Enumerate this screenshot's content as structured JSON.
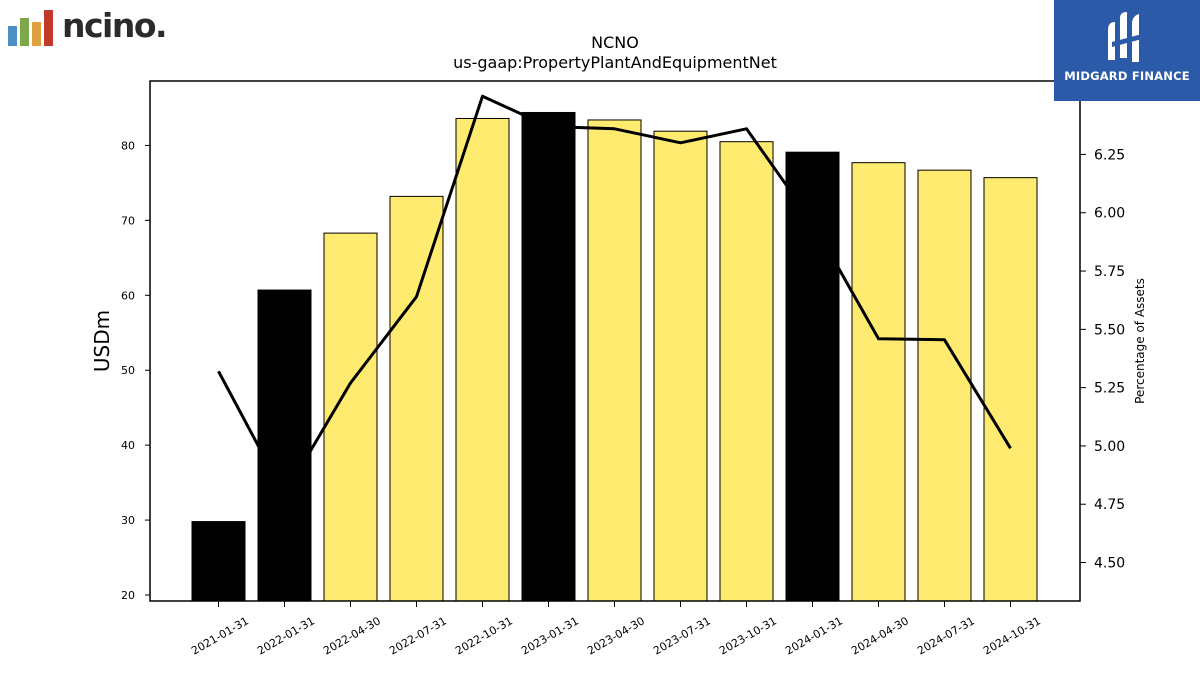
{
  "logos": {
    "left_text": "ncino.",
    "left_bar_colors": [
      "#4a90c2",
      "#7fa84a",
      "#e0a040",
      "#c0392b"
    ],
    "right_text": "MIDGARD FINANCE",
    "right_bg": "#2a5aa8"
  },
  "colors": {
    "bar_yellow": "#ffeb70",
    "bar_black": "#000000",
    "line": "#000000"
  },
  "chart_data": {
    "type": "bar",
    "title": "NCNO",
    "subtitle": "us-gaap:PropertyPlantAndEquipmentNet",
    "ylabel": "USDm",
    "y2label": "Percentage of Assets",
    "ylim": [
      19.2,
      88.6
    ],
    "y2lim": [
      4.335,
      6.565
    ],
    "yticks": [
      20,
      30,
      40,
      50,
      60,
      70,
      80
    ],
    "y2ticks": [
      "4.50",
      "4.75",
      "5.00",
      "5.25",
      "5.50",
      "5.75",
      "6.00",
      "6.25"
    ],
    "categories": [
      "2021-01-31",
      "2022-01-31",
      "2022-04-30",
      "2022-07-31",
      "2022-10-31",
      "2023-01-31",
      "2023-04-30",
      "2023-07-31",
      "2023-10-31",
      "2024-01-31",
      "2024-04-30",
      "2024-07-31",
      "2024-10-31"
    ],
    "series": [
      {
        "type": "bar",
        "values": [
          29.8,
          60.7,
          68.3,
          73.2,
          83.6,
          84.4,
          83.4,
          81.9,
          80.5,
          79.1,
          77.7,
          76.7,
          75.7
        ],
        "highlight": [
          true,
          true,
          false,
          false,
          false,
          true,
          false,
          false,
          false,
          true,
          false,
          false,
          false
        ]
      },
      {
        "type": "line",
        "axis": "right",
        "values": [
          5.32,
          4.79,
          5.27,
          5.64,
          6.5,
          6.37,
          6.36,
          6.3,
          6.36,
          5.96,
          5.46,
          5.455,
          4.99
        ]
      }
    ],
    "grid": false,
    "legend": "none"
  }
}
